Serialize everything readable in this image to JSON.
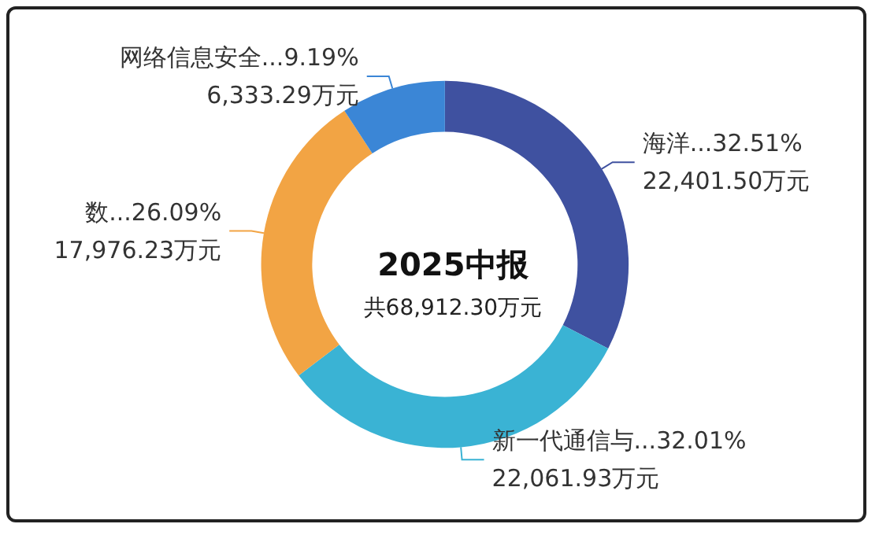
{
  "chart_data": {
    "type": "donut",
    "title": "2025中报",
    "subtitle": "共68,912.30万元",
    "categories": [
      "海洋...",
      "新一代通信与...",
      "数...",
      "网络信息安全..."
    ],
    "values": [
      32.51,
      32.01,
      26.09,
      9.19
    ],
    "colors": [
      "#3f51a0",
      "#3ab3d4",
      "#f2a444",
      "#3b86d6"
    ],
    "value_labels": [
      "32.51%\n22,401.50万元",
      "32.01%\n22,061.93万元",
      "26.09%\n17,976.23万元",
      "9.19%\n6,333.29万元"
    ],
    "legend": false
  }
}
